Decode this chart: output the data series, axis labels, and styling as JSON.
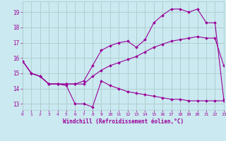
{
  "xlabel": "Windchill (Refroidissement éolien,°C)",
  "bg_color": "#cbe9f0",
  "grid_color": "#aacccc",
  "line_color": "#990099",
  "x_ticks": [
    0,
    1,
    2,
    3,
    4,
    5,
    6,
    7,
    8,
    9,
    10,
    11,
    12,
    13,
    14,
    15,
    16,
    17,
    18,
    19,
    20,
    21,
    22,
    23
  ],
  "y_ticks": [
    13,
    14,
    15,
    16,
    17,
    18,
    19
  ],
  "xlim": [
    0,
    23
  ],
  "ylim": [
    12.6,
    19.7
  ],
  "series1_x": [
    0,
    1,
    2,
    3,
    4,
    5,
    6,
    7,
    8,
    9,
    10,
    11,
    12,
    13,
    14,
    15,
    16,
    17,
    18,
    19,
    20,
    21,
    22,
    23
  ],
  "series1_y": [
    15.8,
    15.0,
    14.8,
    14.3,
    14.3,
    14.2,
    13.0,
    13.0,
    12.8,
    14.5,
    14.2,
    14.0,
    13.8,
    13.7,
    13.6,
    13.5,
    13.4,
    13.3,
    13.3,
    13.2,
    13.2,
    13.2,
    13.2,
    13.2
  ],
  "series2_x": [
    0,
    1,
    2,
    3,
    4,
    5,
    6,
    7,
    8,
    9,
    10,
    11,
    12,
    13,
    14,
    15,
    16,
    17,
    18,
    19,
    20,
    21,
    22,
    23
  ],
  "series2_y": [
    15.8,
    15.0,
    14.8,
    14.3,
    14.3,
    14.3,
    14.3,
    14.3,
    14.8,
    15.2,
    15.5,
    15.7,
    15.9,
    16.1,
    16.4,
    16.7,
    16.9,
    17.1,
    17.2,
    17.3,
    17.4,
    17.3,
    17.3,
    15.5
  ],
  "series3_x": [
    0,
    1,
    2,
    3,
    4,
    5,
    6,
    7,
    8,
    9,
    10,
    11,
    12,
    13,
    14,
    15,
    16,
    17,
    18,
    19,
    20,
    21,
    22,
    23
  ],
  "series3_y": [
    15.8,
    15.0,
    14.8,
    14.3,
    14.3,
    14.3,
    14.3,
    14.5,
    15.5,
    16.5,
    16.8,
    17.0,
    17.1,
    16.7,
    17.2,
    18.3,
    18.8,
    19.2,
    19.2,
    19.0,
    19.2,
    18.3,
    18.3,
    13.3
  ]
}
